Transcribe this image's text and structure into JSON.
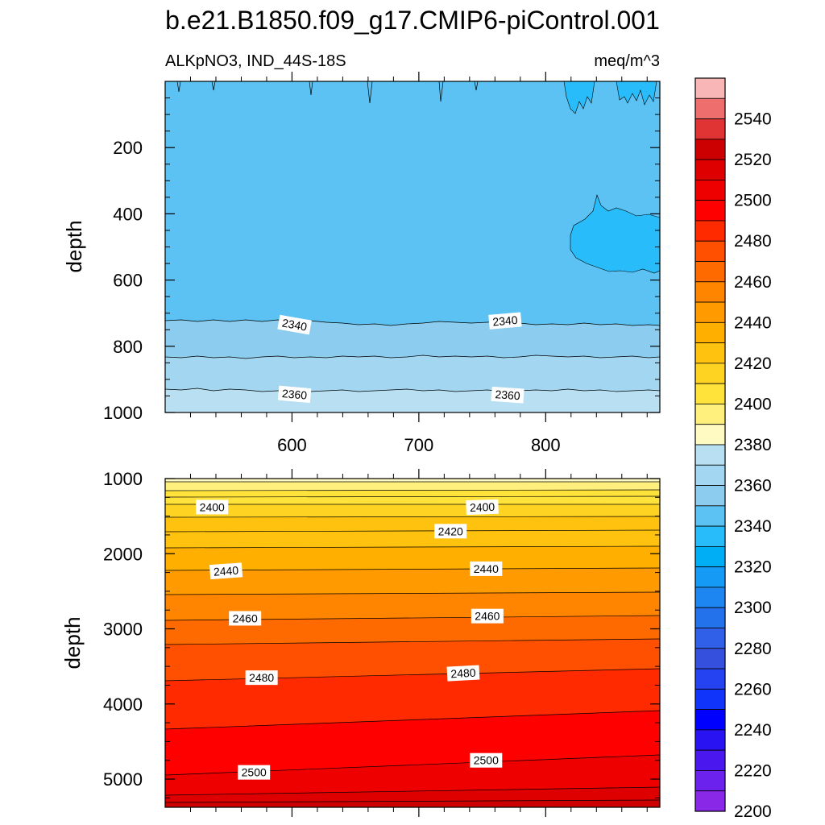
{
  "chart_data": {
    "type": "contour",
    "title": "b.e21.B1850.f09_g17.CMIP6-piControl.001",
    "subtitle_left": "ALKpNO3, IND_44S-18S",
    "subtitle_right": "meq/m^3",
    "xlabel": "",
    "xlim": [
      500,
      890
    ],
    "x_ticks": [
      600,
      700,
      800
    ],
    "x_tick_labels": [
      "600",
      "700",
      "800"
    ],
    "upper_panel": {
      "ylabel": "depth",
      "ylim": [
        0,
        1000
      ],
      "y_ticks": [
        200,
        400,
        600,
        800,
        1000
      ],
      "y_tick_labels": [
        "200",
        "400",
        "600",
        "800",
        "1000"
      ],
      "contour_labels": [
        {
          "text": "2340",
          "x": 602,
          "y": 735,
          "angle": 10
        },
        {
          "text": "2340",
          "x": 768,
          "y": 723,
          "angle": -5
        },
        {
          "text": "2360",
          "x": 602,
          "y": 945,
          "angle": 5
        },
        {
          "text": "2360",
          "x": 770,
          "y": 947,
          "angle": 4
        }
      ]
    },
    "lower_panel": {
      "ylabel": "depth",
      "ylim": [
        1000,
        5375
      ],
      "y_ticks": [
        1000,
        2000,
        3000,
        4000,
        5000
      ],
      "y_tick_labels": [
        "1000",
        "2000",
        "3000",
        "4000",
        "5000"
      ],
      "contour_labels": [
        {
          "text": "2400",
          "x": 537,
          "y": 1380,
          "angle": 0
        },
        {
          "text": "2400",
          "x": 750,
          "y": 1380,
          "angle": -2
        },
        {
          "text": "2420",
          "x": 725,
          "y": 1700,
          "angle": 0
        },
        {
          "text": "2440",
          "x": 548,
          "y": 2230,
          "angle": -4
        },
        {
          "text": "2440",
          "x": 753,
          "y": 2200,
          "angle": 0
        },
        {
          "text": "2460",
          "x": 563,
          "y": 2860,
          "angle": 0
        },
        {
          "text": "2460",
          "x": 754,
          "y": 2830,
          "angle": 0
        },
        {
          "text": "2480",
          "x": 576,
          "y": 3650,
          "angle": 0
        },
        {
          "text": "2480",
          "x": 735,
          "y": 3590,
          "angle": -3
        },
        {
          "text": "2500",
          "x": 570,
          "y": 4910,
          "angle": 0
        },
        {
          "text": "2500",
          "x": 753,
          "y": 4750,
          "angle": 0
        }
      ]
    },
    "colorbar": {
      "label_values": [
        "2540",
        "2520",
        "2500",
        "2480",
        "2460",
        "2440",
        "2420",
        "2400",
        "2380",
        "2360",
        "2340",
        "2320",
        "2300",
        "2280",
        "2260",
        "2240",
        "2220",
        "2200"
      ],
      "colors_top_to_bottom": [
        "#F9B6B6",
        "#EE6E6E",
        "#E03434",
        "#CC0000",
        "#DE0000",
        "#EE0000",
        "#FF0000",
        "#FF2A00",
        "#FF4F00",
        "#FF6A00",
        "#FF8500",
        "#FF9B00",
        "#FFAF00",
        "#FFC20E",
        "#FFD322",
        "#FFE33B",
        "#FFF07D",
        "#FFFAC2",
        "#B9E0F2",
        "#A3D6F0",
        "#8CCCEE",
        "#5BC2F3",
        "#28BDFA",
        "#00AEF5",
        "#159BF6",
        "#1E86F0",
        "#2371EB",
        "#3060E8",
        "#3650DE",
        "#2543F0",
        "#1034FA",
        "#0000FF",
        "#2A13F2",
        "#4A17EE",
        "#6B22EC",
        "#8A28E8"
      ]
    }
  }
}
